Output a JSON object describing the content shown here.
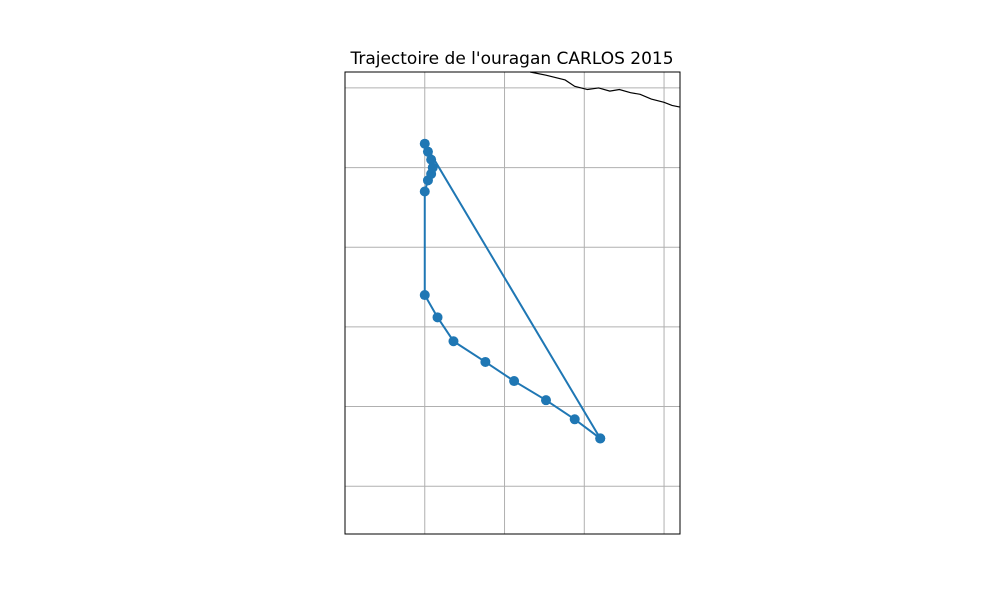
{
  "chart_data": {
    "type": "line",
    "title": "Trajectoire de l'ouragan CARLOS 2015",
    "xlabel": "",
    "ylabel": "",
    "xlim": [
      -106,
      -95.5
    ],
    "ylim": [
      9.5,
      24
    ],
    "grid": true,
    "gridlines_x": [
      -103.5,
      -101,
      -98.5,
      -96
    ],
    "gridlines_y": [
      11,
      13.5,
      16,
      18.5,
      21,
      23.5
    ],
    "series": [
      {
        "marker": "circle",
        "color": "#1f77b4",
        "points": [
          {
            "lon": -98.0,
            "lat": 12.5
          },
          {
            "lon": -98.8,
            "lat": 13.1
          },
          {
            "lon": -99.7,
            "lat": 13.7
          },
          {
            "lon": -100.7,
            "lat": 14.3
          },
          {
            "lon": -101.6,
            "lat": 14.9
          },
          {
            "lon": -102.6,
            "lat": 15.55
          },
          {
            "lon": -103.1,
            "lat": 16.3
          },
          {
            "lon": -103.5,
            "lat": 17.0
          },
          {
            "lon": -103.5,
            "lat": 20.25
          },
          {
            "lon": -103.4,
            "lat": 20.6
          },
          {
            "lon": -103.3,
            "lat": 20.8
          },
          {
            "lon": -103.25,
            "lat": 21.0
          },
          {
            "lon": -103.3,
            "lat": 21.25
          },
          {
            "lon": -103.4,
            "lat": 21.5
          },
          {
            "lon": -103.5,
            "lat": 21.75
          },
          {
            "lon": -98.0,
            "lat": 12.5
          }
        ]
      }
    ],
    "coastline": [
      [
        -100.2,
        24.0
      ],
      [
        -99.7,
        23.9
      ],
      [
        -99.1,
        23.75
      ],
      [
        -98.8,
        23.55
      ],
      [
        -98.4,
        23.45
      ],
      [
        -98.05,
        23.5
      ],
      [
        -97.7,
        23.4
      ],
      [
        -97.4,
        23.45
      ],
      [
        -97.05,
        23.35
      ],
      [
        -96.75,
        23.3
      ],
      [
        -96.4,
        23.15
      ],
      [
        -96.0,
        23.05
      ],
      [
        -95.75,
        22.95
      ],
      [
        -95.5,
        22.9
      ]
    ]
  }
}
